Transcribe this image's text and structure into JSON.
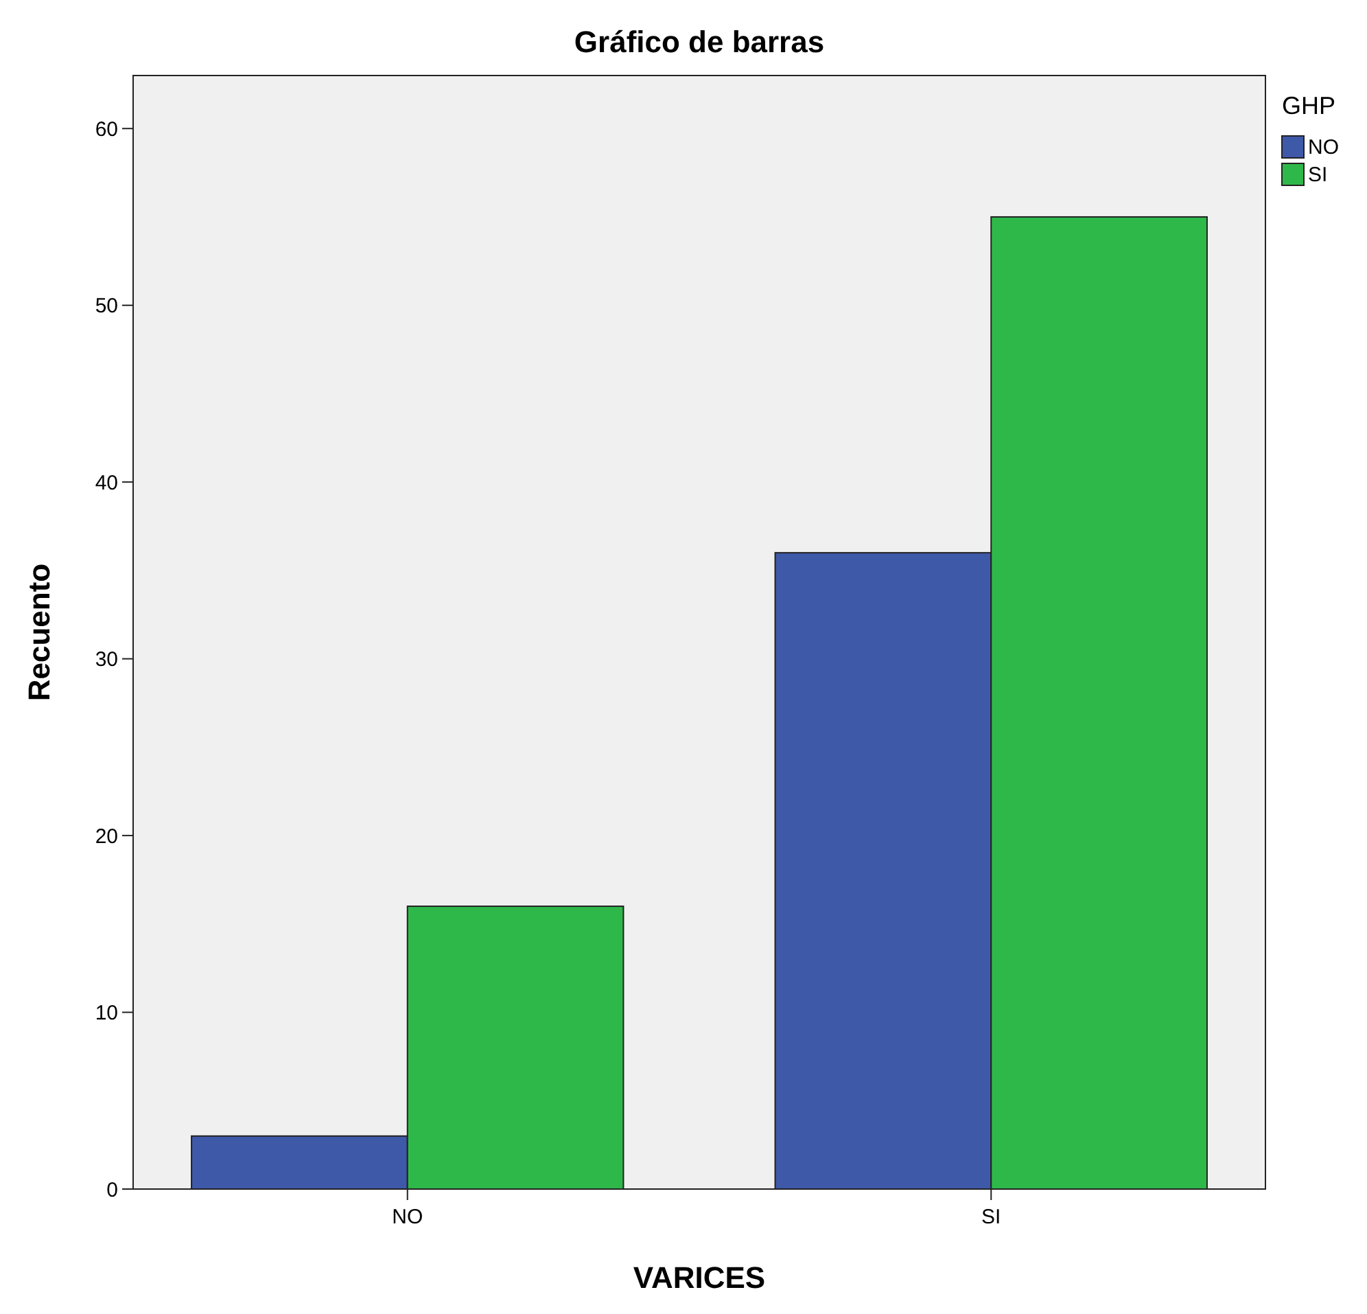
{
  "chart_data": {
    "type": "bar",
    "title": "Gráfico de barras",
    "xlabel": "VARICES",
    "ylabel": "Recuento",
    "legend_title": "GHP",
    "categories": [
      "NO",
      "SI"
    ],
    "series": [
      {
        "name": "NO",
        "color": "#3f59a9",
        "values": [
          3,
          36
        ]
      },
      {
        "name": "SI",
        "color": "#2fb84a",
        "values": [
          16,
          55
        ]
      }
    ],
    "ylim": [
      0,
      63
    ],
    "yticks": [
      0,
      10,
      20,
      30,
      40,
      50,
      60
    ],
    "grid": false,
    "legend": "top right"
  }
}
